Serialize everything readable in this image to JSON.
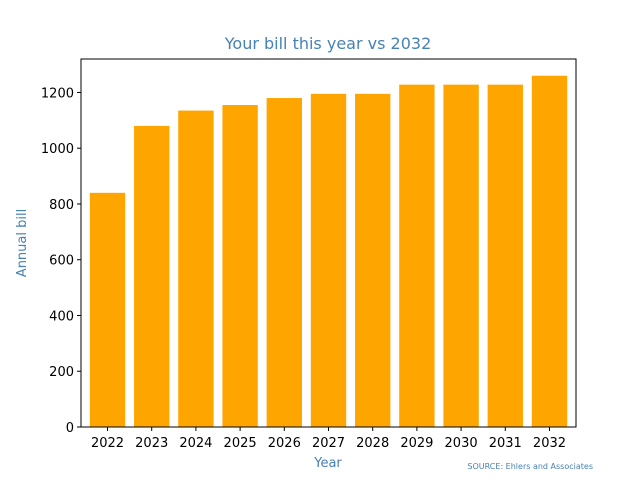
{
  "chart_data": {
    "type": "bar",
    "title": "Your bill this year vs 2032",
    "xlabel": "Year",
    "ylabel": "Annual bill",
    "source": "SOURCE: Ehlers and Associates",
    "categories": [
      "2022",
      "2023",
      "2024",
      "2025",
      "2026",
      "2027",
      "2028",
      "2029",
      "2030",
      "2031",
      "2032"
    ],
    "values": [
      840,
      1080,
      1135,
      1155,
      1180,
      1195,
      1195,
      1228,
      1228,
      1228,
      1260
    ],
    "color": "#ffa500",
    "ylim": [
      0,
      1320
    ],
    "yticks": [
      0,
      200,
      400,
      600,
      800,
      1000,
      1200
    ],
    "grid": false
  }
}
